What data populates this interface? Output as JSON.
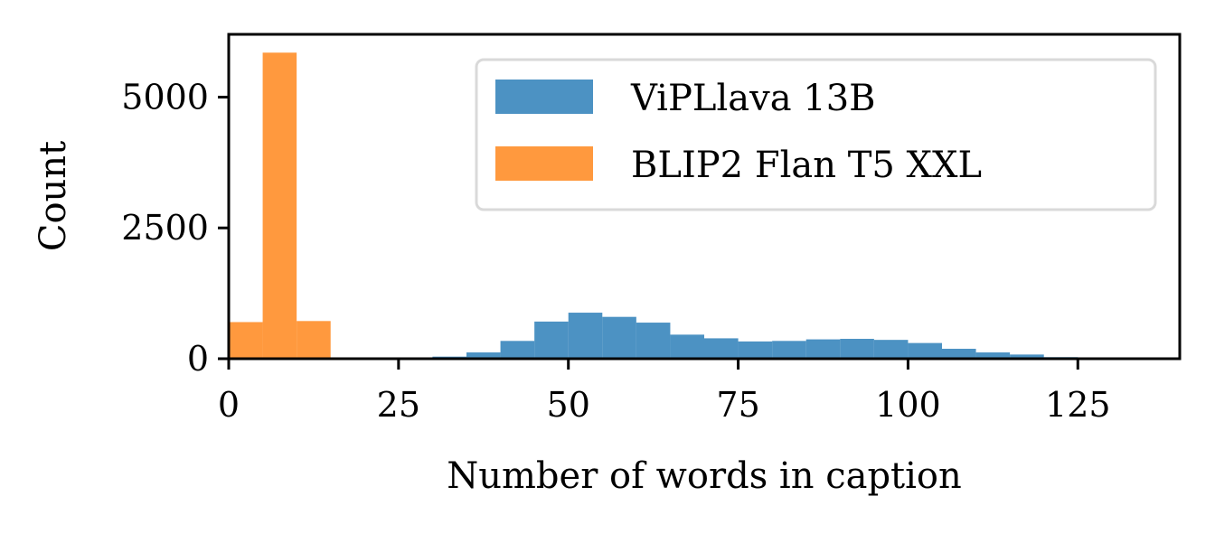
{
  "chart_data": {
    "type": "bar",
    "xlabel": "Number of words in caption",
    "ylabel": "Count",
    "xlim": [
      0,
      140
    ],
    "ylim": [
      0,
      6200
    ],
    "xticks": [
      0,
      25,
      50,
      75,
      100,
      125
    ],
    "yticks": [
      0,
      2500,
      5000
    ],
    "bin_width": 5,
    "legend_position": "top-right",
    "series": [
      {
        "name": "ViPLlava 13B",
        "color": "#1f77b4",
        "bins": [
          {
            "x0": 30,
            "value": 40
          },
          {
            "x0": 35,
            "value": 120
          },
          {
            "x0": 40,
            "value": 340
          },
          {
            "x0": 45,
            "value": 710
          },
          {
            "x0": 50,
            "value": 880
          },
          {
            "x0": 55,
            "value": 800
          },
          {
            "x0": 60,
            "value": 690
          },
          {
            "x0": 65,
            "value": 460
          },
          {
            "x0": 70,
            "value": 390
          },
          {
            "x0": 75,
            "value": 330
          },
          {
            "x0": 80,
            "value": 340
          },
          {
            "x0": 85,
            "value": 370
          },
          {
            "x0": 90,
            "value": 380
          },
          {
            "x0": 95,
            "value": 360
          },
          {
            "x0": 100,
            "value": 300
          },
          {
            "x0": 105,
            "value": 190
          },
          {
            "x0": 110,
            "value": 120
          },
          {
            "x0": 115,
            "value": 80
          },
          {
            "x0": 120,
            "value": 30
          },
          {
            "x0": 125,
            "value": 10
          }
        ]
      },
      {
        "name": "BLIP2 Flan T5 XXL",
        "color": "#ff7f0e",
        "bins": [
          {
            "x0": 0,
            "value": 700
          },
          {
            "x0": 5,
            "value": 5850
          },
          {
            "x0": 10,
            "value": 720
          }
        ]
      }
    ]
  }
}
